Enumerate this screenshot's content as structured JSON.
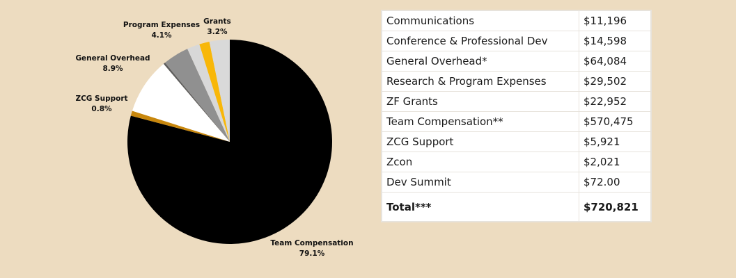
{
  "chart_data": {
    "type": "pie",
    "slices": [
      {
        "label": "Team Compensation",
        "pct_label": "79.1%",
        "value": 79.1,
        "color": "#000000"
      },
      {
        "label": "ZCG Support",
        "pct_label": "0.8%",
        "value": 0.8,
        "color": "#c8870d"
      },
      {
        "label": "General Overhead",
        "pct_label": "8.9%",
        "value": 8.9,
        "color": "#ffffff"
      },
      {
        "label": "",
        "pct_label": "",
        "value": 0.3,
        "color": "#5e5e5e"
      },
      {
        "label": "Program Expenses",
        "pct_label": "4.1%",
        "value": 4.1,
        "color": "#909090"
      },
      {
        "label": "",
        "pct_label": "",
        "value": 2.0,
        "color": "#d8d8d8"
      },
      {
        "label": "",
        "pct_label": "",
        "value": 1.6,
        "color": "#f8b708"
      },
      {
        "label": "Grants",
        "pct_label": "3.2%",
        "value": 3.2,
        "color": "#d9d9d9"
      }
    ]
  },
  "table": {
    "rows": [
      {
        "label": "Communications",
        "amount": "$11,196"
      },
      {
        "label": "Conference & Professional Dev",
        "amount": "$14,598"
      },
      {
        "label": "General Overhead*",
        "amount": "$64,084"
      },
      {
        "label": "Research & Program Expenses",
        "amount": "$29,502"
      },
      {
        "label": "ZF Grants",
        "amount": "$22,952"
      },
      {
        "label": "Team Compensation**",
        "amount": "$570,475"
      },
      {
        "label": "ZCG Support",
        "amount": "$5,921"
      },
      {
        "label": "Zcon",
        "amount": "$2,021"
      },
      {
        "label": "Dev Summit",
        "amount": "$72.00"
      }
    ],
    "total": {
      "label": "Total***",
      "amount": "$720,821"
    }
  }
}
